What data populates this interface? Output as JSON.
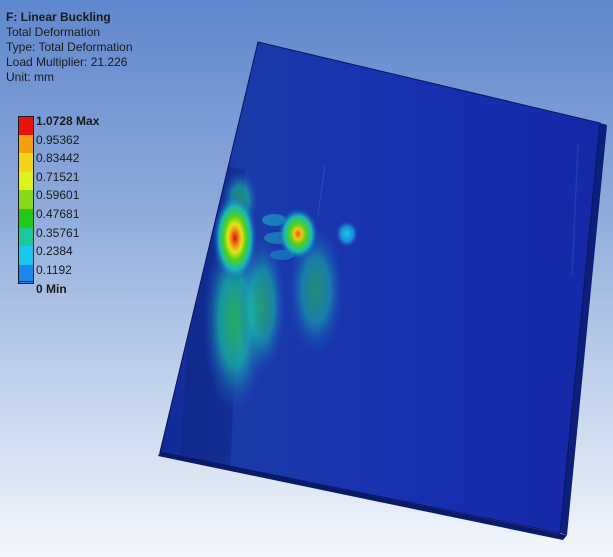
{
  "result": {
    "title": "F: Linear Buckling",
    "lines": [
      "Total Deformation",
      "Type: Total Deformation",
      "Load Multiplier: 21.226",
      "Unit: mm"
    ]
  },
  "legend": {
    "entries": [
      {
        "label": "1.0728 Max",
        "color": "#e8120e",
        "emphasis": true
      },
      {
        "label": "0.95362",
        "color": "#f2a00e",
        "emphasis": false
      },
      {
        "label": "0.83442",
        "color": "#f2d41a",
        "emphasis": false
      },
      {
        "label": "0.71521",
        "color": "#dff21a",
        "emphasis": false
      },
      {
        "label": "0.59601",
        "color": "#8ad81a",
        "emphasis": false
      },
      {
        "label": "0.47681",
        "color": "#22c81e",
        "emphasis": false
      },
      {
        "label": "0.35761",
        "color": "#1ac89a",
        "emphasis": false
      },
      {
        "label": "0.2384",
        "color": "#18c8ea",
        "emphasis": false
      },
      {
        "label": "0.1192",
        "color": "#1a88ea",
        "emphasis": false
      }
    ],
    "min": {
      "label": "0 Min",
      "color": "#1418d2"
    }
  }
}
